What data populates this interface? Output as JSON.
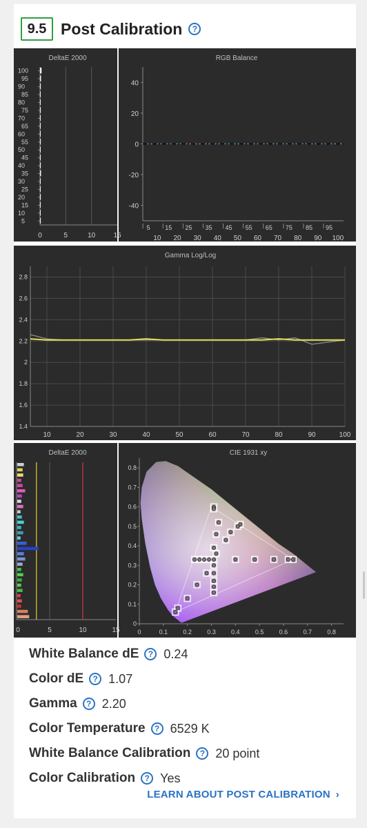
{
  "header": {
    "score": "9.5",
    "title": "Post Calibration",
    "help_icon": "question-circle-icon"
  },
  "chart_data": [
    {
      "type": "bar",
      "title": "DeltaE 2000",
      "orientation": "horizontal",
      "y_ticks": [
        "100",
        "95",
        "90",
        "85",
        "80",
        "75",
        "70",
        "65",
        "60",
        "55",
        "50",
        "45",
        "40",
        "35",
        "30",
        "25",
        "20",
        "15",
        "10",
        "5"
      ],
      "x_ticks": [
        "0",
        "5",
        "10",
        "15"
      ],
      "xlim": [
        0,
        15
      ],
      "reference_lines": [
        5,
        10
      ],
      "values": [
        0.3,
        0.2,
        0.15,
        0.1,
        0.1,
        0.15,
        0.1,
        0.1,
        0.1,
        0.15,
        0.1,
        0.1,
        0.15,
        0.2,
        0.1,
        0.1,
        0.15,
        0.1,
        0.1,
        0.15
      ]
    },
    {
      "type": "line",
      "title": "RGB Balance",
      "x_ticks_top": [
        "5",
        "15",
        "25",
        "35",
        "45",
        "55",
        "65",
        "75",
        "85",
        "95"
      ],
      "x_ticks_bottom": [
        "10",
        "20",
        "30",
        "40",
        "50",
        "60",
        "70",
        "80",
        "90",
        "100"
      ],
      "y_ticks": [
        "40",
        "20",
        "0",
        "-20",
        "-40"
      ],
      "ylim": [
        -50,
        50
      ],
      "series": [
        {
          "color": "#e04040",
          "values": [
            0.2,
            -0.1,
            0.3,
            0.1,
            -0.2,
            0.2,
            0.1,
            -0.1,
            0.2,
            0.1
          ]
        },
        {
          "color": "#40c040",
          "values": [
            -0.1,
            0.2,
            -0.2,
            0.1,
            0.2,
            -0.1,
            0.1,
            0.2,
            -0.1,
            0.1
          ]
        },
        {
          "color": "#4060e0",
          "values": [
            0.1,
            0.1,
            -0.1,
            -0.2,
            0.1,
            0.2,
            -0.1,
            0.1,
            0.1,
            -0.2
          ]
        }
      ]
    },
    {
      "type": "line",
      "title": "Gamma Log/Log",
      "x": [
        5,
        10,
        15,
        20,
        25,
        30,
        35,
        40,
        45,
        50,
        55,
        60,
        65,
        70,
        75,
        80,
        85,
        90,
        95,
        100
      ],
      "x_ticks": [
        "10",
        "20",
        "30",
        "40",
        "50",
        "60",
        "70",
        "80",
        "90",
        "100"
      ],
      "y_ticks": [
        "2.8",
        "2.6",
        "2.4",
        "2.2",
        "2",
        "1.8",
        "1.6",
        "1.4"
      ],
      "ylim": [
        1.4,
        2.9
      ],
      "series": [
        {
          "color": "#e8e050",
          "values": [
            2.22,
            2.21,
            2.21,
            2.21,
            2.21,
            2.21,
            2.21,
            2.22,
            2.21,
            2.21,
            2.21,
            2.21,
            2.21,
            2.21,
            2.21,
            2.22,
            2.21,
            2.21,
            2.21,
            2.21
          ]
        },
        {
          "color": "#8a8a8a",
          "values": [
            2.26,
            2.22,
            2.21,
            2.21,
            2.21,
            2.21,
            2.21,
            2.21,
            2.21,
            2.21,
            2.21,
            2.21,
            2.21,
            2.21,
            2.23,
            2.21,
            2.23,
            2.17,
            2.19,
            2.21
          ]
        }
      ]
    },
    {
      "type": "bar",
      "title": "DeltaE 2000",
      "orientation": "horizontal",
      "x_ticks": [
        "0",
        "5",
        "10",
        "15"
      ],
      "xlim": [
        0,
        15
      ],
      "reference_lines": [
        {
          "value": 3,
          "color": "#d4c72a"
        },
        {
          "value": 10,
          "color": "#c43a3a"
        }
      ],
      "bars": [
        {
          "v": 1.0,
          "c": "#cfcfcf"
        },
        {
          "v": 0.8,
          "c": "#d8d35a"
        },
        {
          "v": 0.9,
          "c": "#e6e070"
        },
        {
          "v": 0.6,
          "c": "#d04a9a"
        },
        {
          "v": 0.8,
          "c": "#c84aa8"
        },
        {
          "v": 1.2,
          "c": "#e05ab8"
        },
        {
          "v": 0.7,
          "c": "#b24ac0"
        },
        {
          "v": 0.6,
          "c": "#d8d8d8"
        },
        {
          "v": 0.9,
          "c": "#e070c8"
        },
        {
          "v": 0.5,
          "c": "#c8c8c8"
        },
        {
          "v": 0.7,
          "c": "#40c0c0"
        },
        {
          "v": 1.0,
          "c": "#4ad0d0"
        },
        {
          "v": 0.6,
          "c": "#40b0c0"
        },
        {
          "v": 0.9,
          "c": "#3aa0b0"
        },
        {
          "v": 0.5,
          "c": "#6ac8d0"
        },
        {
          "v": 1.4,
          "c": "#3a60d0"
        },
        {
          "v": 3.2,
          "c": "#2a40c8"
        },
        {
          "v": 1.0,
          "c": "#5a80e0"
        },
        {
          "v": 1.2,
          "c": "#7a90d8"
        },
        {
          "v": 0.8,
          "c": "#9aa8d8"
        },
        {
          "v": 0.6,
          "c": "#40c040"
        },
        {
          "v": 0.9,
          "c": "#50d050"
        },
        {
          "v": 0.7,
          "c": "#38b038"
        },
        {
          "v": 0.6,
          "c": "#60c860"
        },
        {
          "v": 0.8,
          "c": "#48b848"
        },
        {
          "v": 0.5,
          "c": "#d84040"
        },
        {
          "v": 0.7,
          "c": "#e05050"
        },
        {
          "v": 0.6,
          "c": "#c83030"
        },
        {
          "v": 1.6,
          "c": "#d88060"
        },
        {
          "v": 1.8,
          "c": "#e0a080"
        }
      ]
    },
    {
      "type": "scatter",
      "title": "CIE 1931 xy",
      "xlim": [
        0,
        0.85
      ],
      "ylim": [
        0,
        0.85
      ],
      "x_ticks": [
        "0",
        "0.1",
        "0.2",
        "0.3",
        "0.4",
        "0.5",
        "0.6",
        "0.7",
        "0.8"
      ],
      "y_ticks": [
        "0.8",
        "0.7",
        "0.6",
        "0.5",
        "0.4",
        "0.3",
        "0.2",
        "0.1",
        "0"
      ],
      "targets": [
        [
          0.31,
          0.6
        ],
        [
          0.31,
          0.59
        ],
        [
          0.33,
          0.52
        ],
        [
          0.32,
          0.46
        ],
        [
          0.31,
          0.39
        ],
        [
          0.42,
          0.51
        ],
        [
          0.41,
          0.5
        ],
        [
          0.38,
          0.47
        ],
        [
          0.36,
          0.43
        ],
        [
          0.23,
          0.33
        ],
        [
          0.25,
          0.33
        ],
        [
          0.27,
          0.33
        ],
        [
          0.29,
          0.33
        ],
        [
          0.31,
          0.33
        ],
        [
          0.4,
          0.33
        ],
        [
          0.48,
          0.33
        ],
        [
          0.56,
          0.33
        ],
        [
          0.62,
          0.33
        ],
        [
          0.64,
          0.33
        ],
        [
          0.31,
          0.3
        ],
        [
          0.31,
          0.26
        ],
        [
          0.31,
          0.22
        ],
        [
          0.31,
          0.19
        ],
        [
          0.31,
          0.16
        ],
        [
          0.28,
          0.26
        ],
        [
          0.24,
          0.2
        ],
        [
          0.2,
          0.13
        ],
        [
          0.16,
          0.08
        ],
        [
          0.15,
          0.06
        ],
        [
          0.32,
          0.36
        ]
      ],
      "measured": [
        [
          0.31,
          0.6
        ],
        [
          0.31,
          0.59
        ],
        [
          0.33,
          0.52
        ],
        [
          0.32,
          0.46
        ],
        [
          0.31,
          0.39
        ],
        [
          0.42,
          0.51
        ],
        [
          0.41,
          0.5
        ],
        [
          0.38,
          0.47
        ],
        [
          0.36,
          0.43
        ],
        [
          0.23,
          0.33
        ],
        [
          0.25,
          0.33
        ],
        [
          0.27,
          0.33
        ],
        [
          0.29,
          0.33
        ],
        [
          0.31,
          0.33
        ],
        [
          0.4,
          0.33
        ],
        [
          0.48,
          0.33
        ],
        [
          0.56,
          0.33
        ],
        [
          0.62,
          0.33
        ],
        [
          0.64,
          0.33
        ],
        [
          0.31,
          0.3
        ],
        [
          0.31,
          0.26
        ],
        [
          0.31,
          0.22
        ],
        [
          0.31,
          0.19
        ],
        [
          0.31,
          0.16
        ],
        [
          0.28,
          0.26
        ],
        [
          0.24,
          0.2
        ],
        [
          0.2,
          0.13
        ],
        [
          0.16,
          0.08
        ],
        [
          0.15,
          0.06
        ],
        [
          0.32,
          0.36
        ]
      ]
    }
  ],
  "stats": [
    {
      "label": "White Balance dE",
      "value": "0.24"
    },
    {
      "label": "Color dE",
      "value": "1.07"
    },
    {
      "label": "Gamma",
      "value": "2.20"
    },
    {
      "label": "Color Temperature",
      "value": "6529 K"
    },
    {
      "label": "White Balance Calibration",
      "value": "20 point"
    },
    {
      "label": "Color Calibration",
      "value": "Yes"
    }
  ],
  "link": {
    "label": "LEARN ABOUT POST CALIBRATION",
    "chevron_icon": "chevron-right-icon"
  },
  "colors": {
    "accent": "#2a72c4",
    "score_border": "#2f9e44",
    "panel_bg": "#2b2b2b"
  }
}
